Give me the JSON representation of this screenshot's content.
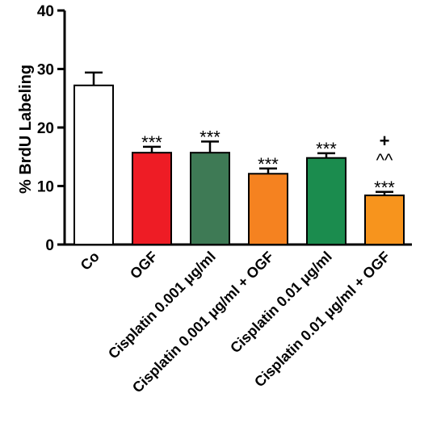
{
  "chart_data": {
    "type": "bar",
    "ylabel": "% BrdU Labeling",
    "xlabel": "",
    "ylim": [
      0,
      40
    ],
    "yticks": [
      "0",
      "10",
      "20",
      "30",
      "40"
    ],
    "grid": false,
    "categories": [
      "Co",
      "OGF",
      "Cisplatin 0.001 μg/ml",
      "Cisplatin 0.001 μg/ml + OGF",
      "Cisplatin 0.01 μg/ml",
      "Cisplatin 0.01 μg/ml + OGF"
    ],
    "values": [
      27.2,
      15.7,
      15.7,
      12.1,
      14.8,
      8.4
    ],
    "errors": [
      2.2,
      1.0,
      1.9,
      0.9,
      0.8,
      0.6
    ],
    "colors": [
      "#ffffff",
      "#ee1c25",
      "#3e7a55",
      "#f58220",
      "#1b8c4e",
      "#f7941d"
    ],
    "annotations": [
      [],
      [
        "***"
      ],
      [
        "***"
      ],
      [
        "***"
      ],
      [
        "***"
      ],
      [
        "***",
        "^^",
        "+"
      ]
    ]
  }
}
